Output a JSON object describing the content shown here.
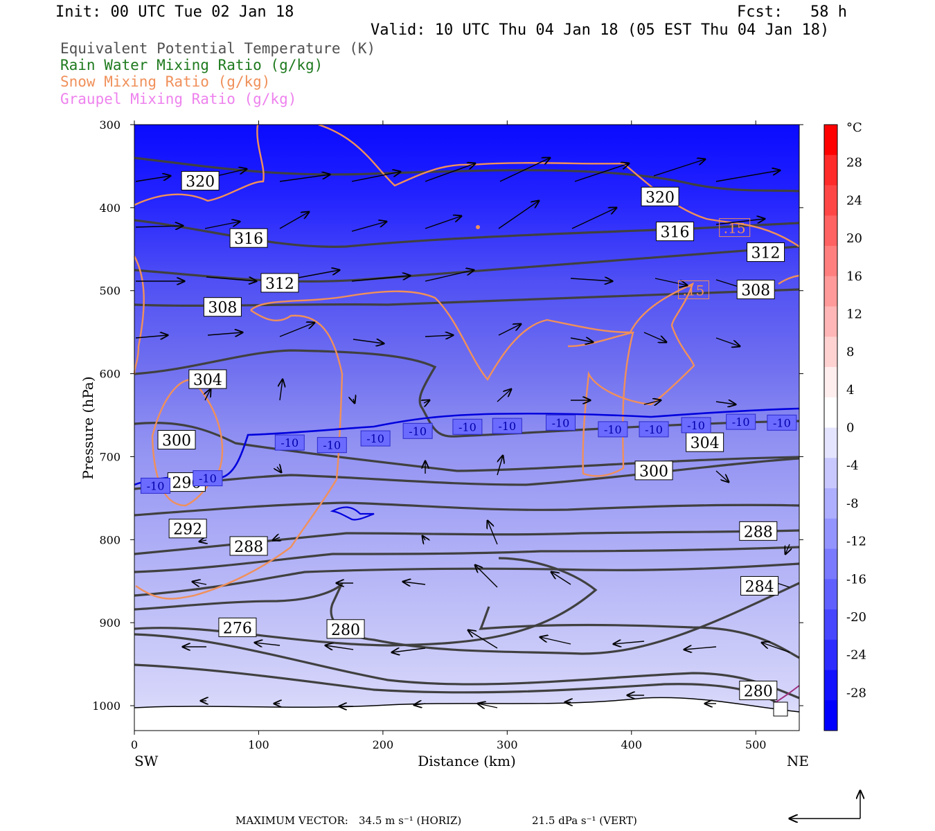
{
  "header": {
    "init": "Init: 00 UTC Tue 02 Jan 18",
    "fcst": "Fcst:   58 h",
    "valid": "Valid: 10 UTC Thu 04 Jan 18 (05 EST Thu 04 Jan 18)"
  },
  "legend": [
    {
      "label": "Equivalent Potential Temperature (K)",
      "color": "#505050"
    },
    {
      "label": "Rain Water Mixing Ratio (g/kg)",
      "color": "#1e7a1e"
    },
    {
      "label": "Snow Mixing Ratio (g/kg)",
      "color": "#f0905a"
    },
    {
      "label": "Graupel Mixing Ratio (g/kg)",
      "color": "#ee82ee"
    }
  ],
  "chart_data": {
    "type": "heatmap",
    "xlabel": "Distance (km)",
    "ylabel": "Pressure (hPa)",
    "xlim": [
      0,
      535
    ],
    "ylim": [
      1030,
      300
    ],
    "x_ticks": [
      "0",
      "100",
      "200",
      "300",
      "400",
      "500"
    ],
    "y_ticks": [
      "300",
      "400",
      "500",
      "600",
      "700",
      "800",
      "900",
      "1000"
    ],
    "x_end_labels": {
      "left": "SW",
      "right": "NE"
    },
    "colorbar": {
      "unit": "°C",
      "labels": [
        "28",
        "24",
        "20",
        "16",
        "12",
        "8",
        "4",
        "0",
        "-4",
        "-8",
        "-12",
        "-16",
        "-20",
        "-24",
        "-28"
      ],
      "colors": [
        "#ff0000",
        "#ff2a2a",
        "#ff4646",
        "#ff6262",
        "#ff7e7e",
        "#ff9a9a",
        "#ffb6b6",
        "#ffd2d2",
        "#ffeeee",
        "#ffffff",
        "#e4e4ff",
        "#c8c8ff",
        "#aeaeff",
        "#9494ff",
        "#7a7aff",
        "#6060ff",
        "#4646ff",
        "#2c2cff",
        "#1212ff",
        "#0000ff"
      ]
    },
    "theta_e_labels": [
      {
        "text": "320",
        "x": 53,
        "p": 368
      },
      {
        "text": "320",
        "x": 423,
        "p": 387
      },
      {
        "text": "316",
        "x": 92,
        "p": 437
      },
      {
        "text": "316",
        "x": 435,
        "p": 429
      },
      {
        "text": "312",
        "x": 117,
        "p": 491
      },
      {
        "text": "312",
        "x": 508,
        "p": 454
      },
      {
        "text": "308",
        "x": 71,
        "p": 520
      },
      {
        "text": "308",
        "x": 500,
        "p": 499
      },
      {
        "text": "304",
        "x": 59,
        "p": 607
      },
      {
        "text": "304",
        "x": 459,
        "p": 683
      },
      {
        "text": "300",
        "x": 34,
        "p": 680
      },
      {
        "text": "300",
        "x": 418,
        "p": 717
      },
      {
        "text": "296",
        "x": 42,
        "p": 731
      },
      {
        "text": "292",
        "x": 43,
        "p": 787
      },
      {
        "text": "288",
        "x": 92,
        "p": 808
      },
      {
        "text": "288",
        "x": 502,
        "p": 790
      },
      {
        "text": "284",
        "x": 503,
        "p": 856
      },
      {
        "text": "276",
        "x": 83,
        "p": 906
      },
      {
        "text": "280",
        "x": 170,
        "p": 908
      },
      {
        "text": "280",
        "x": 502,
        "p": 982
      }
    ],
    "temp_minus10_labels": [
      {
        "text": "-10",
        "x": 17,
        "p": 735
      },
      {
        "text": "-10",
        "x": 59,
        "p": 726
      },
      {
        "text": "-10",
        "x": 125,
        "p": 683
      },
      {
        "text": "-10",
        "x": 159,
        "p": 686
      },
      {
        "text": "-10",
        "x": 194,
        "p": 678
      },
      {
        "text": "-10",
        "x": 228,
        "p": 669
      },
      {
        "text": "-10",
        "x": 268,
        "p": 664
      },
      {
        "text": "-10",
        "x": 300,
        "p": 663
      },
      {
        "text": "-10",
        "x": 343,
        "p": 659
      },
      {
        "text": "-10",
        "x": 385,
        "p": 667
      },
      {
        "text": "-10",
        "x": 418,
        "p": 667
      },
      {
        "text": "-10",
        "x": 452,
        "p": 662
      },
      {
        "text": "-10",
        "x": 488,
        "p": 658
      },
      {
        "text": "-10",
        "x": 521,
        "p": 659
      }
    ],
    "snow_labels": [
      {
        "text": ".15",
        "x": 483,
        "p": 424
      },
      {
        "text": ".15",
        "x": 450,
        "p": 499
      }
    ],
    "max_vector": {
      "label": "MAXIMUM VECTOR:",
      "horiz": "34.5 m s⁻¹ (HORIZ)",
      "vert": "21.5 dPa s⁻¹ (VERT)"
    }
  }
}
